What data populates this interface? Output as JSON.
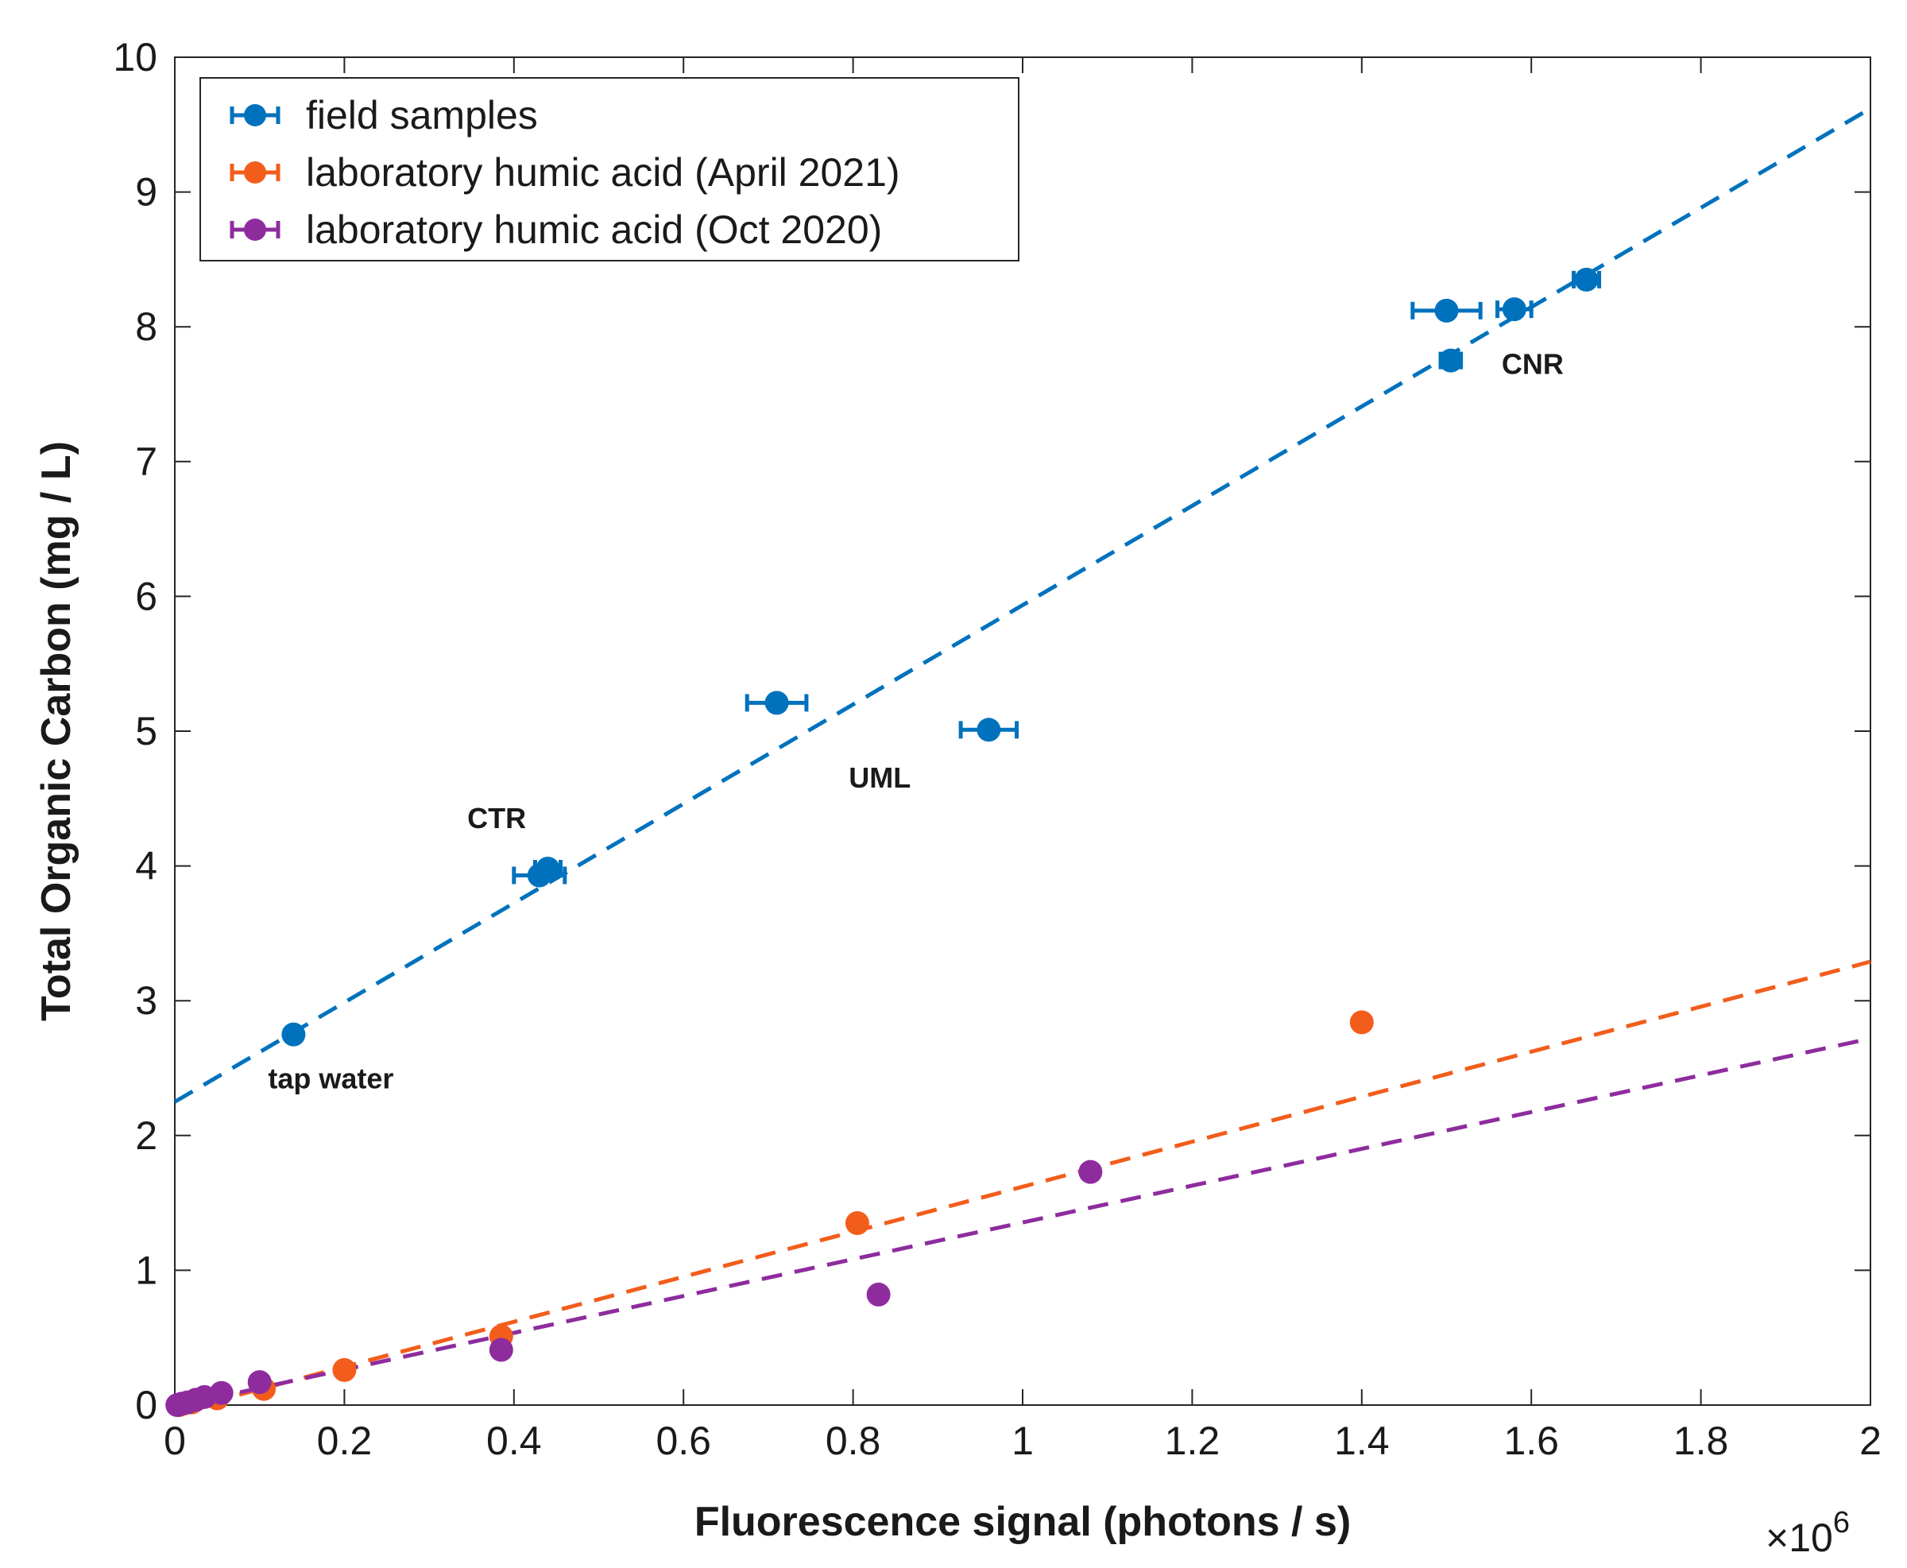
{
  "chart_data": {
    "type": "scatter",
    "xlabel": "Fluorescence signal (photons / s)",
    "ylabel": "Total Organic Carbon (mg / L)",
    "x_multiplier_label": "×10",
    "x_multiplier_exponent": "6",
    "xlim": [
      0,
      2
    ],
    "ylim": [
      0,
      10
    ],
    "x_ticks": [
      "0",
      "0.2",
      "0.4",
      "0.6",
      "0.8",
      "1",
      "1.2",
      "1.4",
      "1.6",
      "1.8",
      "2"
    ],
    "y_ticks": [
      "0",
      "1",
      "2",
      "3",
      "4",
      "5",
      "6",
      "7",
      "8",
      "9",
      "10"
    ],
    "grid": false,
    "legend_position": "top-left",
    "series": [
      {
        "name": "field samples",
        "color": "#0072BD",
        "points": [
          {
            "x": 0.14,
            "y": 2.75,
            "xerr": 0
          },
          {
            "x": 0.43,
            "y": 3.93,
            "xerr": 0.03
          },
          {
            "x": 0.44,
            "y": 3.98,
            "xerr": 0.015
          },
          {
            "x": 0.71,
            "y": 5.21,
            "xerr": 0.035
          },
          {
            "x": 0.96,
            "y": 5.01,
            "xerr": 0.033
          },
          {
            "x": 1.5,
            "y": 8.12,
            "xerr": 0.04
          },
          {
            "x": 1.505,
            "y": 7.75,
            "xerr": 0.012
          },
          {
            "x": 1.58,
            "y": 8.13,
            "xerr": 0.02
          },
          {
            "x": 1.665,
            "y": 8.35,
            "xerr": 0.015
          }
        ],
        "fit": {
          "x": [
            0,
            2
          ],
          "y": [
            2.25,
            9.62
          ]
        }
      },
      {
        "name": "laboratory humic acid (April 2021)",
        "color": "#F25D1C",
        "points": [
          {
            "x": 0.005,
            "y": 0.0
          },
          {
            "x": 0.01,
            "y": 0.01
          },
          {
            "x": 0.02,
            "y": 0.02
          },
          {
            "x": 0.05,
            "y": 0.05
          },
          {
            "x": 0.105,
            "y": 0.12
          },
          {
            "x": 0.2,
            "y": 0.26
          },
          {
            "x": 0.385,
            "y": 0.51
          },
          {
            "x": 0.805,
            "y": 1.35
          },
          {
            "x": 1.4,
            "y": 2.84
          }
        ],
        "fit": {
          "x": [
            0,
            2
          ],
          "y": [
            -0.05,
            3.29
          ]
        }
      },
      {
        "name": "laboratory humic acid (Oct 2020)",
        "color": "#8E2C9E",
        "points": [
          {
            "x": 0.003,
            "y": 0.0
          },
          {
            "x": 0.008,
            "y": 0.01
          },
          {
            "x": 0.015,
            "y": 0.02
          },
          {
            "x": 0.025,
            "y": 0.04
          },
          {
            "x": 0.035,
            "y": 0.06
          },
          {
            "x": 0.055,
            "y": 0.09
          },
          {
            "x": 0.1,
            "y": 0.17
          },
          {
            "x": 0.385,
            "y": 0.41
          },
          {
            "x": 0.83,
            "y": 0.82
          },
          {
            "x": 1.08,
            "y": 1.73
          }
        ],
        "fit": {
          "x": [
            0,
            2
          ],
          "y": [
            -0.01,
            2.72
          ]
        }
      }
    ],
    "annotations": [
      {
        "text": "CNR",
        "x": 1.565,
        "y": 7.65
      },
      {
        "text": "UML",
        "x": 0.795,
        "y": 4.58
      },
      {
        "text": "CTR",
        "x": 0.345,
        "y": 4.28
      },
      {
        "text": "tap water",
        "x": 0.11,
        "y": 2.35
      }
    ]
  }
}
